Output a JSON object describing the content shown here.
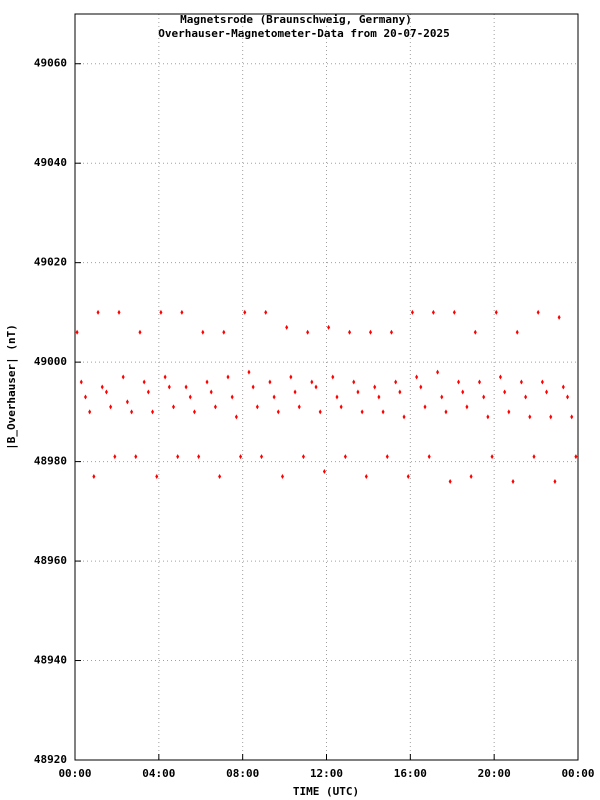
{
  "chart_data": {
    "type": "scatter",
    "title": "Magnetsrode (Braunschweig, Germany)",
    "subtitle": "Overhauser-Magnetometer-Data from 20-07-2025",
    "x_label": "TIME (UTC)",
    "y_label": "|B_Overhauser| (nT)",
    "color": "#ff0000",
    "grid": true,
    "xlim": [
      0,
      24
    ],
    "ylim": [
      48920,
      49070
    ],
    "xticks": [
      {
        "value": 0,
        "label": "00:00"
      },
      {
        "value": 4,
        "label": "04:00"
      },
      {
        "value": 8,
        "label": "08:00"
      },
      {
        "value": 12,
        "label": "12:00"
      },
      {
        "value": 16,
        "label": "16:00"
      },
      {
        "value": 20,
        "label": "20:00"
      },
      {
        "value": 24,
        "label": "00:00"
      }
    ],
    "yticks": [
      48920,
      48940,
      48960,
      48980,
      49000,
      49020,
      49040,
      49060
    ],
    "x": [
      0.1,
      0.3,
      0.5,
      0.7,
      0.9,
      1.1,
      1.3,
      1.5,
      1.7,
      1.9,
      2.1,
      2.3,
      2.5,
      2.7,
      2.9,
      3.1,
      3.3,
      3.5,
      3.7,
      3.9,
      4.1,
      4.3,
      4.5,
      4.7,
      4.9,
      5.1,
      5.3,
      5.5,
      5.7,
      5.9,
      6.1,
      6.3,
      6.5,
      6.7,
      6.9,
      7.1,
      7.3,
      7.5,
      7.7,
      7.9,
      8.1,
      8.3,
      8.5,
      8.7,
      8.9,
      9.1,
      9.3,
      9.5,
      9.7,
      9.9,
      10.1,
      10.3,
      10.5,
      10.7,
      10.9,
      11.1,
      11.3,
      11.5,
      11.7,
      11.9,
      12.1,
      12.3,
      12.5,
      12.7,
      12.9,
      13.1,
      13.3,
      13.5,
      13.7,
      13.9,
      14.1,
      14.3,
      14.5,
      14.7,
      14.9,
      15.1,
      15.3,
      15.5,
      15.7,
      15.9,
      16.1,
      16.3,
      16.5,
      16.7,
      16.9,
      17.1,
      17.3,
      17.5,
      17.7,
      17.9,
      18.1,
      18.3,
      18.5,
      18.7,
      18.9,
      19.1,
      19.3,
      19.5,
      19.7,
      19.9,
      20.1,
      20.3,
      20.5,
      20.7,
      20.9,
      21.1,
      21.3,
      21.5,
      21.7,
      21.9,
      22.1,
      22.3,
      22.5,
      22.7,
      22.9,
      23.1,
      23.3,
      23.5,
      23.7,
      23.9
    ],
    "y": [
      49006,
      48996,
      48993,
      48990,
      48977,
      49010,
      48995,
      48994,
      48991,
      48981,
      49010,
      48997,
      48992,
      48990,
      48981,
      49006,
      48996,
      48994,
      48990,
      48977,
      49010,
      48997,
      48995,
      48991,
      48981,
      49010,
      48995,
      48993,
      48990,
      48981,
      49006,
      48996,
      48994,
      48991,
      48977,
      49006,
      48997,
      48993,
      48989,
      48981,
      49010,
      48998,
      48995,
      48991,
      48981,
      49010,
      48996,
      48993,
      48990,
      48977,
      49007,
      48997,
      48994,
      48991,
      48981,
      49006,
      48996,
      48995,
      48990,
      48978,
      49007,
      48997,
      48993,
      48991,
      48981,
      49006,
      48996,
      48994,
      48990,
      48977,
      49006,
      48995,
      48993,
      48990,
      48981,
      49006,
      48996,
      48994,
      48989,
      48977,
      49010,
      48997,
      48995,
      48991,
      48981,
      49010,
      48998,
      48993,
      48990,
      48976,
      49010,
      48996,
      48994,
      48991,
      48977,
      49006,
      48996,
      48993,
      48989,
      48981,
      49010,
      48997,
      48994,
      48990,
      48976,
      49006,
      48996,
      48993,
      48989,
      48981,
      49010,
      48996,
      48994,
      48989,
      48976,
      49009,
      48995,
      48993,
      48989,
      48981
    ]
  }
}
